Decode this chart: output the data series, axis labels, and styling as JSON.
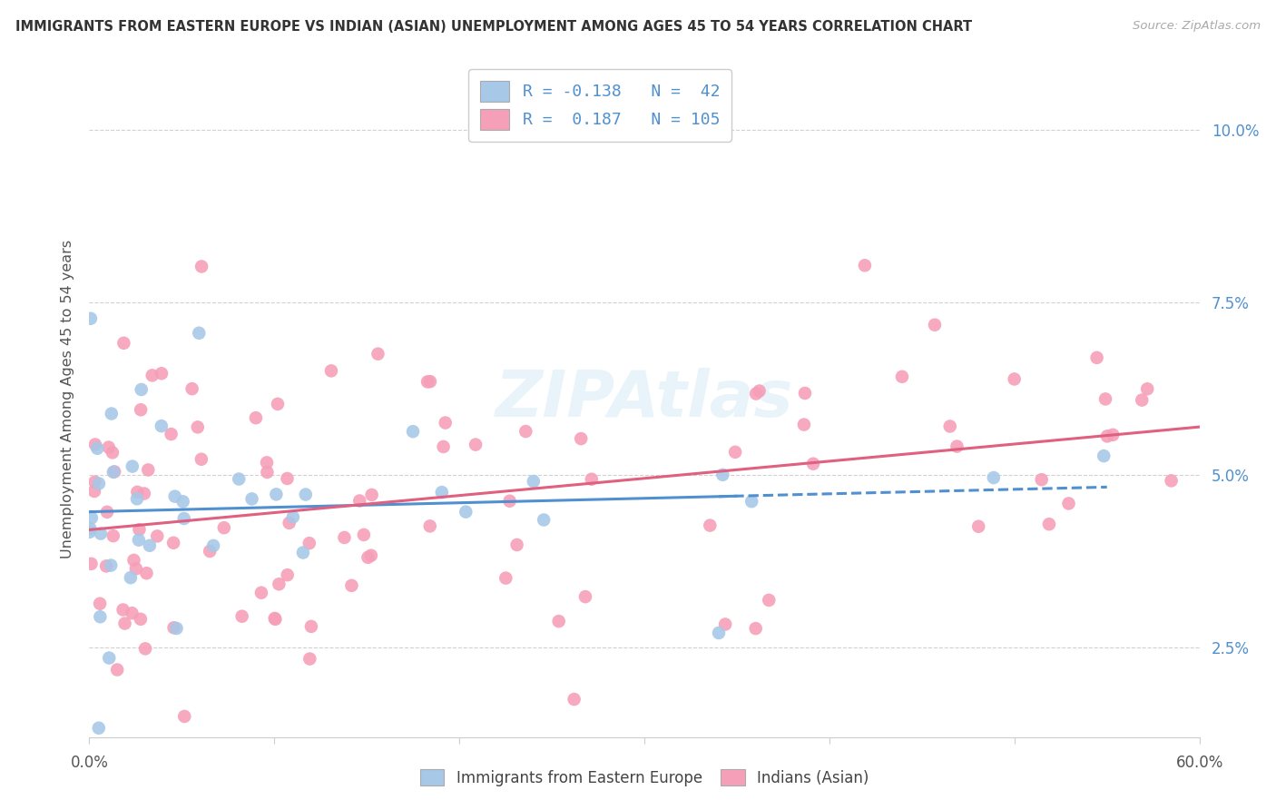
{
  "title": "IMMIGRANTS FROM EASTERN EUROPE VS INDIAN (ASIAN) UNEMPLOYMENT AMONG AGES 45 TO 54 YEARS CORRELATION CHART",
  "source": "Source: ZipAtlas.com",
  "ylabel": "Unemployment Among Ages 45 to 54 years",
  "ytick_labels": [
    "2.5%",
    "5.0%",
    "7.5%",
    "10.0%"
  ],
  "ytick_values": [
    2.5,
    5.0,
    7.5,
    10.0
  ],
  "xlim": [
    0.0,
    60.0
  ],
  "ylim": [
    1.2,
    11.0
  ],
  "blue_R": "-0.138",
  "blue_N": "42",
  "pink_R": "0.187",
  "pink_N": "105",
  "legend_labels": [
    "Immigrants from Eastern Europe",
    "Indians (Asian)"
  ],
  "blue_color": "#a8c8e8",
  "pink_color": "#f5a0b8",
  "blue_line_color": "#5090d0",
  "pink_line_color": "#e06080",
  "watermark": "ZIPAtlas",
  "blue_scatter_seed": 12,
  "pink_scatter_seed": 7
}
